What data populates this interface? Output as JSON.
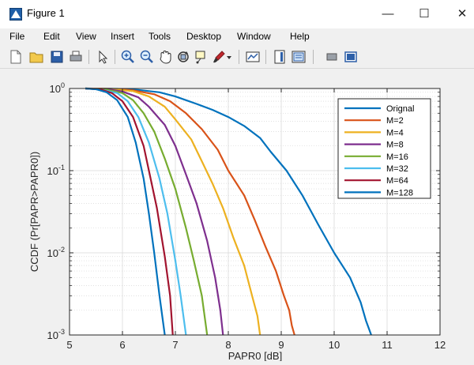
{
  "window": {
    "title": "Figure 1",
    "minimize": "—",
    "maximize": "☐",
    "close": "✕"
  },
  "menu": [
    "File",
    "Edit",
    "View",
    "Insert",
    "Tools",
    "Desktop",
    "Window",
    "Help"
  ],
  "toolbar_icons": [
    "new-figure-icon",
    "open-file-icon",
    "save-icon",
    "print-icon",
    "pointer-icon",
    "zoom-in-icon",
    "zoom-out-icon",
    "pan-icon",
    "rotate-3d-icon",
    "data-cursor-icon",
    "brush-icon",
    "brush-dropdown-icon",
    "link-plot-icon",
    "colorbar-icon",
    "legend-icon",
    "hide-plot-tools-icon",
    "show-plot-tools-icon"
  ],
  "chart_data": {
    "type": "line",
    "xlabel": "PAPR0 [dB]",
    "ylabel": "CCDF (Pr[PAPR>PAPR0])",
    "xlim": [
      5,
      12
    ],
    "ylim": [
      0.001,
      1
    ],
    "yscale": "log",
    "grid": true,
    "legend_position": "top-right",
    "x_ticks": [
      "5",
      "6",
      "7",
      "8",
      "9",
      "10",
      "11",
      "12"
    ],
    "y_ticks": [
      {
        "base": "10",
        "exp": "0",
        "value": 1
      },
      {
        "base": "10",
        "exp": "-1",
        "value": 0.1
      },
      {
        "base": "10",
        "exp": "-2",
        "value": 0.01
      },
      {
        "base": "10",
        "exp": "-3",
        "value": 0.001
      }
    ],
    "series": [
      {
        "name": "Orignal",
        "color": "#0072BD",
        "x": [
          5.3,
          5.9,
          6.3,
          6.7,
          7.0,
          7.4,
          7.7,
          8.0,
          8.3,
          8.6,
          8.8,
          9.1,
          9.4,
          9.7,
          10.0,
          10.3,
          10.5,
          10.6,
          10.7
        ],
        "y": [
          1,
          0.99,
          0.96,
          0.9,
          0.8,
          0.65,
          0.55,
          0.45,
          0.35,
          0.25,
          0.17,
          0.1,
          0.05,
          0.022,
          0.01,
          0.005,
          0.0025,
          0.0015,
          0.001
        ]
      },
      {
        "name": "M=2",
        "color": "#D95319",
        "x": [
          5.3,
          5.8,
          6.2,
          6.6,
          6.9,
          7.2,
          7.5,
          7.8,
          8.0,
          8.3,
          8.5,
          8.7,
          8.9,
          9.05,
          9.15,
          9.2,
          9.25
        ],
        "y": [
          1,
          0.99,
          0.95,
          0.85,
          0.7,
          0.5,
          0.32,
          0.18,
          0.1,
          0.05,
          0.025,
          0.012,
          0.006,
          0.003,
          0.002,
          0.0013,
          0.001
        ]
      },
      {
        "name": "M=4",
        "color": "#EDB120",
        "x": [
          5.3,
          5.8,
          6.2,
          6.5,
          6.8,
          7.0,
          7.3,
          7.5,
          7.7,
          7.9,
          8.1,
          8.3,
          8.45,
          8.55,
          8.6
        ],
        "y": [
          1,
          0.98,
          0.93,
          0.8,
          0.6,
          0.42,
          0.24,
          0.13,
          0.07,
          0.035,
          0.015,
          0.007,
          0.003,
          0.0017,
          0.001
        ]
      },
      {
        "name": "M=8",
        "color": "#7E2F8E",
        "x": [
          5.3,
          5.7,
          6.0,
          6.3,
          6.5,
          6.8,
          7.0,
          7.2,
          7.4,
          7.6,
          7.75,
          7.85,
          7.9
        ],
        "y": [
          1,
          0.98,
          0.92,
          0.78,
          0.6,
          0.36,
          0.2,
          0.09,
          0.04,
          0.014,
          0.005,
          0.002,
          0.001
        ]
      },
      {
        "name": "M=16",
        "color": "#77AC30",
        "x": [
          5.3,
          5.7,
          6.0,
          6.2,
          6.4,
          6.6,
          6.8,
          7.0,
          7.2,
          7.35,
          7.5,
          7.6
        ],
        "y": [
          1,
          0.97,
          0.88,
          0.72,
          0.5,
          0.3,
          0.14,
          0.06,
          0.02,
          0.008,
          0.003,
          0.001
        ]
      },
      {
        "name": "M=32",
        "color": "#4DBEEE",
        "x": [
          5.3,
          5.6,
          5.9,
          6.1,
          6.3,
          6.5,
          6.7,
          6.85,
          7.0,
          7.1,
          7.2
        ],
        "y": [
          1,
          0.97,
          0.88,
          0.7,
          0.45,
          0.22,
          0.08,
          0.03,
          0.008,
          0.003,
          0.001
        ]
      },
      {
        "name": "M=64",
        "color": "#A2142F",
        "x": [
          5.3,
          5.6,
          5.8,
          6.0,
          6.2,
          6.4,
          6.5,
          6.65,
          6.8,
          6.9,
          6.95
        ],
        "y": [
          1,
          0.97,
          0.88,
          0.7,
          0.45,
          0.2,
          0.1,
          0.035,
          0.009,
          0.003,
          0.001
        ]
      },
      {
        "name": "M=128",
        "color": "#0072BD",
        "x": [
          5.3,
          5.5,
          5.7,
          5.9,
          6.1,
          6.25,
          6.4,
          6.5,
          6.6,
          6.7,
          6.8
        ],
        "y": [
          1,
          0.98,
          0.9,
          0.72,
          0.45,
          0.22,
          0.08,
          0.03,
          0.01,
          0.003,
          0.001
        ]
      }
    ]
  }
}
